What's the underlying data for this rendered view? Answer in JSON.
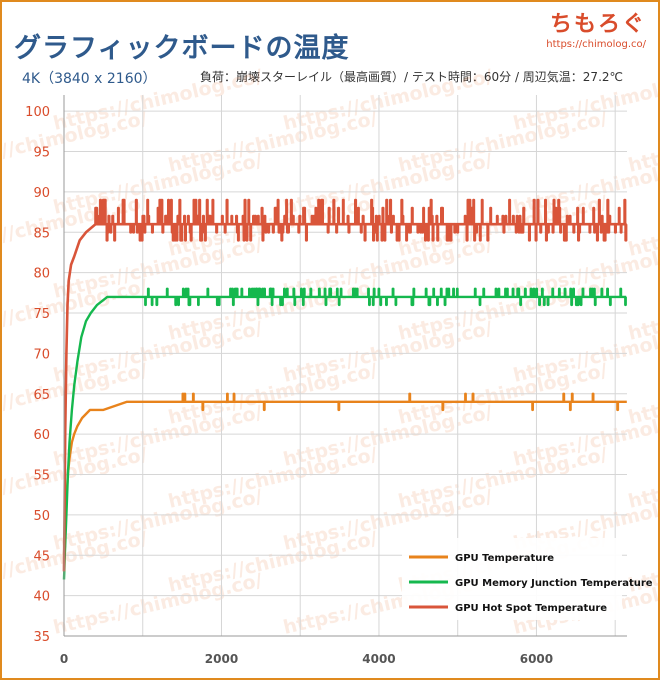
{
  "header": {
    "title": "グラフィックボードの温度",
    "subtitle_left": "4K（3840 x 2160）",
    "subtitle_right": "負荷：崩壊スターレイル（最高画質）/ テスト時間：60分 / 周辺気温：27.2℃"
  },
  "logo": {
    "name": "ちもろぐ",
    "url": "https://chimolog.co/"
  },
  "watermark": "https://chimolog.co/",
  "colors": {
    "gpu": "#e8831c",
    "memory": "#15b84e",
    "hotspot": "#d9553a",
    "tick_y": "#d94c2b",
    "frame": "#e08a1e"
  },
  "chart_data": {
    "type": "line",
    "title": "グラフィックボードの温度",
    "xlabel": "",
    "ylabel": "",
    "xlim": [
      0,
      7150
    ],
    "ylim": [
      35,
      102
    ],
    "xticks": [
      0,
      2000,
      4000,
      6000
    ],
    "yticks": [
      35,
      40,
      45,
      50,
      55,
      60,
      65,
      70,
      75,
      80,
      85,
      90,
      95,
      100
    ],
    "grid": true,
    "legend_position": "bottom-right",
    "series": [
      {
        "name": "GPU Temperature",
        "steady": 64,
        "noise_up": [
          65
        ],
        "noise_down": [
          63
        ],
        "ramp": [
          [
            0,
            45
          ],
          [
            10,
            48
          ],
          [
            30,
            52
          ],
          [
            50,
            55
          ],
          [
            70,
            57
          ],
          [
            100,
            59
          ],
          [
            130,
            60
          ],
          [
            170,
            61
          ],
          [
            230,
            62
          ],
          [
            330,
            63
          ],
          [
            500,
            63
          ],
          [
            800,
            64
          ],
          [
            7150,
            64
          ]
        ]
      },
      {
        "name": "GPU Memory Junction Temperature",
        "steady": 77,
        "noise_up": [
          78
        ],
        "noise_down": [
          76
        ],
        "ramp": [
          [
            0,
            42
          ],
          [
            10,
            45
          ],
          [
            30,
            50
          ],
          [
            50,
            55
          ],
          [
            70,
            59
          ],
          [
            100,
            63
          ],
          [
            130,
            66
          ],
          [
            170,
            69
          ],
          [
            220,
            72
          ],
          [
            280,
            74
          ],
          [
            340,
            75
          ],
          [
            420,
            76
          ],
          [
            550,
            77
          ],
          [
            900,
            77
          ],
          [
            7150,
            77
          ]
        ]
      },
      {
        "name": "GPU Hot Spot Temperature",
        "steady": 86,
        "noise_up": [
          87,
          88,
          89
        ],
        "noise_down": [
          84,
          85
        ],
        "ramp": [
          [
            0,
            43
          ],
          [
            15,
            60
          ],
          [
            30,
            70
          ],
          [
            45,
            76
          ],
          [
            60,
            79
          ],
          [
            90,
            81
          ],
          [
            130,
            82
          ],
          [
            200,
            84
          ],
          [
            280,
            85
          ],
          [
            400,
            86
          ],
          [
            7150,
            86
          ]
        ]
      }
    ]
  }
}
